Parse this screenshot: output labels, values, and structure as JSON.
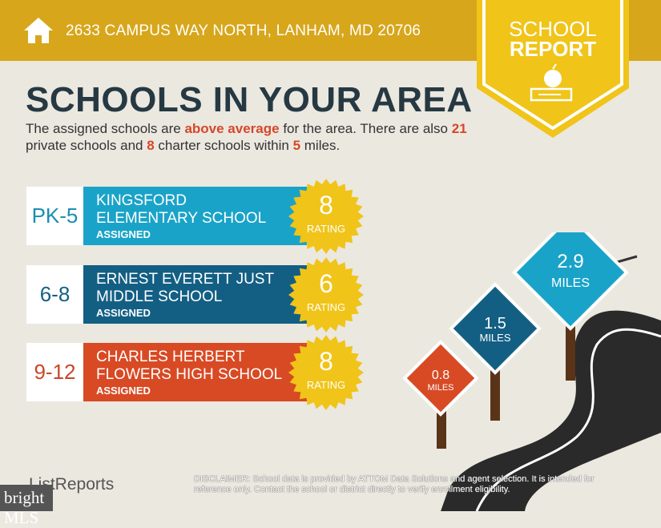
{
  "header": {
    "address": "2633 CAMPUS WAY NORTH, LANHAM, MD 20706",
    "badge_line1": "SCHOOL",
    "badge_line2": "REPORT"
  },
  "title": "SCHOOLS IN YOUR AREA",
  "intro": {
    "t1": "The assigned schools are ",
    "rating_word": "above average",
    "t2": " for the area. There are also ",
    "private_count": "21",
    "t3": " private schools and ",
    "charter_count": "8",
    "t4": " charter schools within ",
    "miles": "5",
    "t5": " miles."
  },
  "schools": [
    {
      "grades": "PK-5",
      "name1": "KINGSFORD",
      "name2": "ELEMENTARY SCHOOL",
      "status": "ASSIGNED",
      "rating": "8",
      "rating_label": "RATING",
      "color": "#1aa3c8",
      "grade_color": "#1a8fb0"
    },
    {
      "grades": "6-8",
      "name1": "ERNEST EVERETT JUST",
      "name2": "MIDDLE SCHOOL",
      "status": "ASSIGNED",
      "rating": "6",
      "rating_label": "RATING",
      "color": "#135f84",
      "grade_color": "#135f84"
    },
    {
      "grades": "9-12",
      "name1": "CHARLES HERBERT",
      "name2": "FLOWERS HIGH SCHOOL",
      "status": "ASSIGNED",
      "rating": "8",
      "rating_label": "RATING",
      "color": "#d84a24",
      "grade_color": "#c9462a"
    }
  ],
  "distances": [
    {
      "value": "2.9",
      "unit": "MILES"
    },
    {
      "value": "1.5",
      "unit": "MILES"
    },
    {
      "value": "0.8",
      "unit": "MILES"
    }
  ],
  "footer": {
    "logo": "ListReports",
    "mls_logo": "bright MLS",
    "disclaimer_label": "DISCLAIMER:",
    "disclaimer": " School data is provided by ATTOM Data Solutions and agent selection. It is intended for reference only. Contact the school or district directly to verify enrollment eligibility."
  },
  "colors": {
    "header": "#d7a61b",
    "badge": "#f0c419",
    "title": "#263943",
    "highlight": "#d6472a"
  }
}
